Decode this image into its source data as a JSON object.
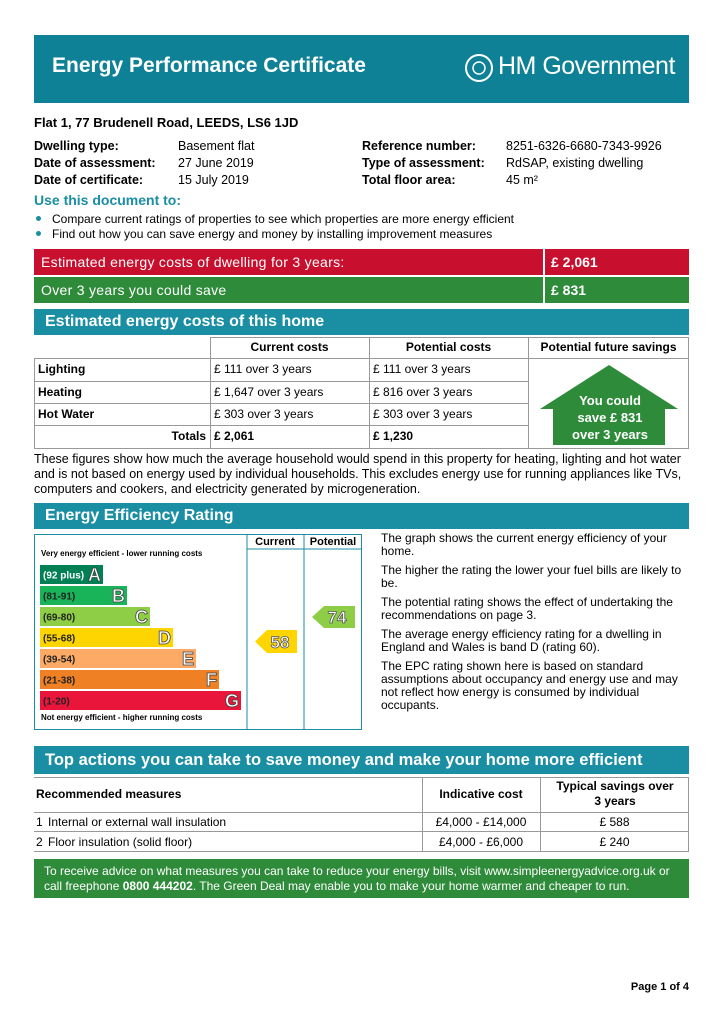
{
  "header": {
    "title": "Energy Performance Certificate",
    "brand": "HM Government"
  },
  "address": "Flat 1, 77 Brudenell Road, LEEDS, LS6 1JD",
  "details": [
    [
      "Dwelling type:",
      "Basement flat",
      "Reference number:",
      "8251-6326-6680-7343-9926"
    ],
    [
      "Date of assessment:",
      "27 June 2019",
      "Type of assessment:",
      "RdSAP, existing dwelling"
    ],
    [
      "Date of certificate:",
      "15 July 2019",
      "Total floor area:",
      "45 m²"
    ]
  ],
  "use": {
    "heading": "Use this document to:",
    "items": [
      "Compare current ratings of properties to see which properties are more energy efficient",
      "Find out how you can save energy and money by installing improvement measures"
    ]
  },
  "banners": [
    {
      "label": "Estimated energy costs of dwelling for 3 years:",
      "value": "£ 2,061",
      "color": "#c8102e"
    },
    {
      "label": "Over 3 years you could save",
      "value": "£ 831",
      "color": "#2e8b3a"
    }
  ],
  "costs": {
    "title": "Estimated energy costs of this home",
    "headers": [
      "Current costs",
      "Potential costs",
      "Potential future savings"
    ],
    "rows": [
      [
        "Lighting",
        "£ 111 over 3 years",
        "£ 111 over 3 years"
      ],
      [
        "Heating",
        "£ 1,647 over 3 years",
        "£ 816 over 3 years"
      ],
      [
        "Hot Water",
        "£ 303 over 3 years",
        "£ 303 over 3 years"
      ]
    ],
    "totals": [
      "Totals",
      "£ 2,061",
      "£ 1,230"
    ],
    "savings": [
      "You could",
      "save £ 831",
      "over 3 years"
    ],
    "note": "These figures show how much the average household would spend in this property for heating, lighting and hot water and is not based on energy used by individual households. This excludes energy use for running appliances like TVs, computers and cookers, and electricity generated by microgeneration."
  },
  "rating": {
    "title": "Energy Efficiency Rating",
    "col_current": "Current",
    "col_potential": "Potential",
    "top_note": "Very energy efficient - lower running costs",
    "bottom_note": "Not energy efficient - higher running costs",
    "bands": [
      {
        "range": "(92 plus)",
        "letter": "A",
        "color": "#008054"
      },
      {
        "range": "(81-91)",
        "letter": "B",
        "color": "#19b459"
      },
      {
        "range": "(69-80)",
        "letter": "C",
        "color": "#8dce46"
      },
      {
        "range": "(55-68)",
        "letter": "D",
        "color": "#ffd500"
      },
      {
        "range": "(39-54)",
        "letter": "E",
        "color": "#fcaa65"
      },
      {
        "range": "(21-38)",
        "letter": "F",
        "color": "#ef8023"
      },
      {
        "range": "(1-20)",
        "letter": "G",
        "color": "#e9153b"
      }
    ],
    "current": "58",
    "potential": "74",
    "paragraphs": [
      "The graph shows the current energy efficiency of your home.",
      "The higher the rating the lower your fuel bills are likely to be.",
      "The potential rating shows the effect of undertaking the recommendations on page 3.",
      "The average energy efficiency rating for a dwelling in England and Wales is band D (rating 60).",
      "The EPC rating shown here is based on standard assumptions about occupancy and energy use and may not reflect how energy is consumed by individual occupants."
    ]
  },
  "actions": {
    "title": "Top actions you can take to save money and make your home more efficient",
    "headers": [
      "Recommended measures",
      "Indicative cost",
      "Typical savings over 3 years"
    ],
    "rows": [
      [
        "1",
        "Internal or external wall insulation",
        "£4,000 - £14,000",
        "£ 588"
      ],
      [
        "2",
        "Floor insulation (solid floor)",
        "£4,000 - £6,000",
        "£ 240"
      ]
    ]
  },
  "footer": {
    "before": "To receive advice on what measures you can take to reduce your energy bills, visit www.simpleenergyadvice.org.uk or call freephone ",
    "phone": "0800 444202",
    "after": ". The Green Deal may enable you to make your home warmer and cheaper to run."
  },
  "page": "Page 1 of 4"
}
